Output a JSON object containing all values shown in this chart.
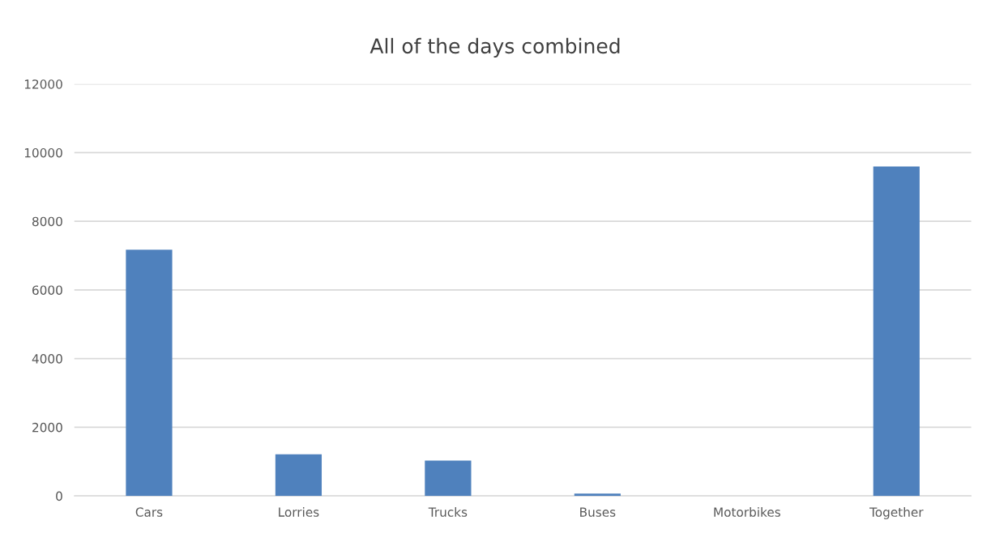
{
  "chart_data": {
    "type": "bar",
    "title": "All of the days combined",
    "categories": [
      "Cars",
      "Lorries",
      "Trucks",
      "Buses",
      "Motorbikes",
      "Together"
    ],
    "values": [
      7170,
      1210,
      1030,
      70,
      0,
      9600
    ],
    "color": "#4f81bd",
    "ylim": [
      0,
      12000
    ],
    "yticks": [
      0,
      2000,
      4000,
      6000,
      8000,
      10000,
      12000
    ],
    "grid": "y"
  }
}
